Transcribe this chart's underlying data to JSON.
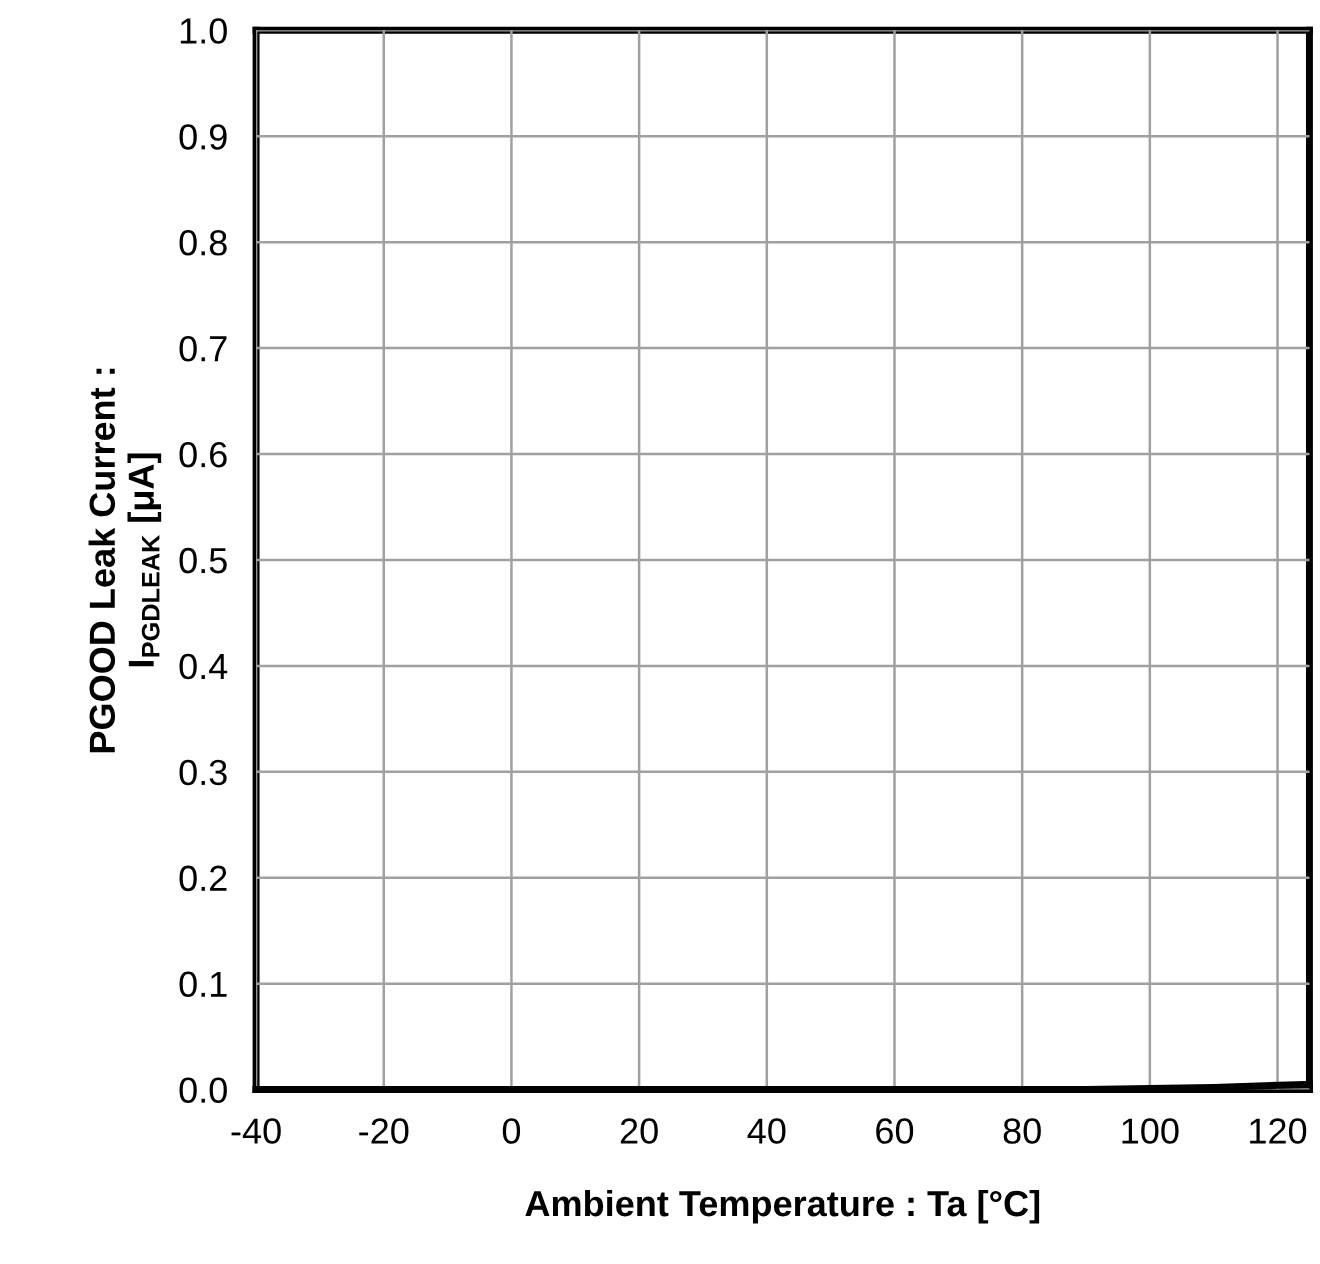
{
  "chart_data": {
    "type": "line",
    "xlabel": "Ambient Temperature : Ta [°C]",
    "ylabel": "PGOOD Leak Current :\nI$_{PGDLEAK}$ [μA]",
    "x": [
      -40,
      -20,
      0,
      20,
      40,
      60,
      80,
      90,
      100,
      110,
      125
    ],
    "series": [
      {
        "color": "#000000",
        "values": [
          0,
          0,
          0,
          0,
          0,
          0,
          0,
          0,
          0.001,
          0.002,
          0.005
        ]
      }
    ],
    "xlim": [
      -40,
      125
    ],
    "xticks": [
      -40,
      -20,
      0,
      20,
      40,
      60,
      80,
      100,
      120
    ],
    "ylim": [
      0,
      1
    ],
    "yticks": [
      {
        "value": 0,
        "label": "0.0"
      },
      {
        "value": 0.1,
        "label": "0.1"
      },
      {
        "value": 0.2,
        "label": "0.2"
      },
      {
        "value": 0.3,
        "label": "0.3"
      },
      {
        "value": 0.4,
        "label": "0.4"
      },
      {
        "value": 0.5,
        "label": "0.5"
      },
      {
        "value": 0.6,
        "label": "0.6"
      },
      {
        "value": 0.7,
        "label": "0.7"
      },
      {
        "value": 0.8,
        "label": "0.8"
      },
      {
        "value": 0.9,
        "label": "0.9"
      },
      {
        "value": 1,
        "label": "1.0"
      }
    ],
    "grid": true,
    "marker": "none",
    "line_style": "solid"
  }
}
